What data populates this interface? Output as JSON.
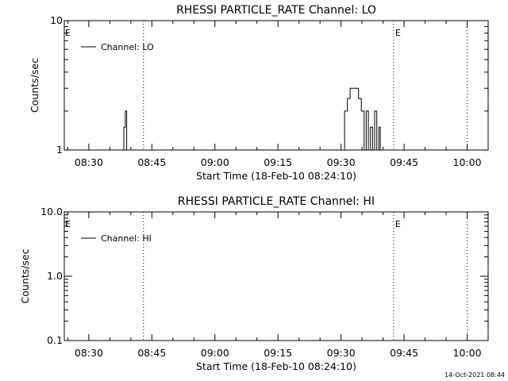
{
  "chart_data": [
    {
      "type": "line",
      "title": "RHESSI PARTICLE_RATE Channel: LO",
      "xlabel": "Start Time (18-Feb-10 08:24:10)",
      "ylabel": "Counts/sec",
      "y_scale": "log",
      "ylim": [
        1,
        10
      ],
      "y_ticks": [
        "1",
        "10"
      ],
      "xlim": [
        "08:24:10",
        "10:05:00"
      ],
      "x_ticks": [
        "08:30",
        "08:45",
        "09:00",
        "09:15",
        "09:30",
        "09:45",
        "10:00"
      ],
      "legend": {
        "position": "top-left",
        "entries": [
          "Channel: LO"
        ]
      },
      "grid": false,
      "vertical_markers": [
        {
          "time": "08:43:00",
          "style": "dotted"
        },
        {
          "time": "09:42:30",
          "style": "dotted",
          "label": "E"
        },
        {
          "time": "10:00:00",
          "style": "dotted"
        }
      ],
      "edge_marker_label": "E",
      "series": [
        {
          "name": "Channel: LO",
          "points": [
            [
              "08:38:20",
              1
            ],
            [
              "08:38:20",
              1.5
            ],
            [
              "08:38:40",
              1.5
            ],
            [
              "08:38:40",
              2
            ],
            [
              "08:39:00",
              2
            ],
            [
              "08:39:00",
              1
            ],
            [
              "09:30:50",
              1
            ],
            [
              "09:30:50",
              2
            ],
            [
              "09:31:30",
              2
            ],
            [
              "09:31:30",
              2.5
            ],
            [
              "09:32:10",
              2.5
            ],
            [
              "09:32:10",
              3
            ],
            [
              "09:34:10",
              3
            ],
            [
              "09:34:10",
              2.5
            ],
            [
              "09:34:50",
              2.5
            ],
            [
              "09:34:50",
              2
            ],
            [
              "09:35:30",
              2
            ],
            [
              "09:35:30",
              1
            ],
            [
              "09:36:00",
              1
            ],
            [
              "09:36:00",
              2
            ],
            [
              "09:36:30",
              2
            ],
            [
              "09:36:30",
              1
            ],
            [
              "09:37:00",
              1
            ],
            [
              "09:37:00",
              1.5
            ],
            [
              "09:37:30",
              1.5
            ],
            [
              "09:37:30",
              1
            ],
            [
              "09:38:00",
              1
            ],
            [
              "09:38:00",
              2
            ],
            [
              "09:38:30",
              2
            ],
            [
              "09:38:30",
              1
            ],
            [
              "09:39:00",
              1
            ],
            [
              "09:39:00",
              1.5
            ],
            [
              "09:39:20",
              1.5
            ],
            [
              "09:39:20",
              1
            ]
          ]
        }
      ]
    },
    {
      "type": "line",
      "title": "RHESSI PARTICLE_RATE Channel: HI",
      "xlabel": "Start Time (18-Feb-10 08:24:10)",
      "ylabel": "Counts/sec",
      "y_scale": "log",
      "ylim": [
        0.1,
        10
      ],
      "y_ticks": [
        "0.1",
        "1.0",
        "10.0"
      ],
      "xlim": [
        "08:24:10",
        "10:05:00"
      ],
      "x_ticks": [
        "08:30",
        "08:45",
        "09:00",
        "09:15",
        "09:30",
        "09:45",
        "10:00"
      ],
      "legend": {
        "position": "top-left",
        "entries": [
          "Channel: HI"
        ]
      },
      "grid": false,
      "vertical_markers": [
        {
          "time": "08:43:00",
          "style": "dotted"
        },
        {
          "time": "09:42:30",
          "style": "dotted",
          "label": "E"
        },
        {
          "time": "10:00:00",
          "style": "dotted"
        }
      ],
      "edge_marker_label": "E",
      "series": [
        {
          "name": "Channel: HI",
          "points": []
        }
      ]
    }
  ],
  "footer": {
    "timestamp": "14-Oct-2021 08:44"
  }
}
